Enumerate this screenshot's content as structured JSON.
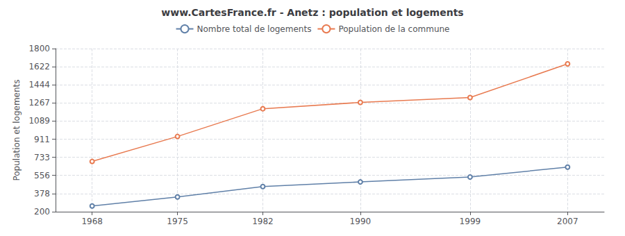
{
  "chart_data": {
    "type": "line",
    "title": "www.CartesFrance.fr - Anetz : population et logements",
    "ylabel": "Population et logements",
    "x": [
      1968,
      1975,
      1982,
      1990,
      1999,
      2007
    ],
    "xlim": [
      1965,
      2010
    ],
    "xticks": [
      1968,
      1975,
      1982,
      1990,
      1999,
      2007
    ],
    "ylim": [
      200,
      1800
    ],
    "yticks": [
      200,
      378,
      556,
      733,
      911,
      1089,
      1267,
      1444,
      1622,
      1800
    ],
    "series": [
      {
        "name": "Nombre total de logements",
        "color": "#6080a8",
        "marker": "circle",
        "values": [
          256,
          345,
          447,
          492,
          540,
          638
        ]
      },
      {
        "name": "Population de la commune",
        "color": "#e87a50",
        "marker": "circle",
        "values": [
          693,
          938,
          1210,
          1272,
          1320,
          1650
        ]
      }
    ],
    "grid": true,
    "legend": "top"
  }
}
